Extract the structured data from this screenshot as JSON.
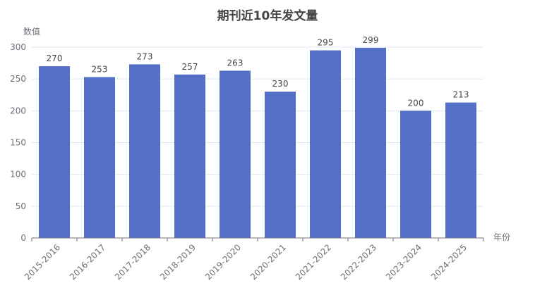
{
  "chart_data": {
    "type": "bar",
    "title": "期刊近10年发文量",
    "ylabel": "数值",
    "xlabel": "年份",
    "ylim": [
      0,
      300
    ],
    "yticks": [
      0,
      50,
      100,
      150,
      200,
      250,
      300
    ],
    "categories": [
      "2015-2016",
      "2016-2017",
      "2017-2018",
      "2018-2019",
      "2019-2020",
      "2020-2021",
      "2021-2022",
      "2022-2023",
      "2023-2024",
      "2024-2025"
    ],
    "values": [
      270,
      253,
      273,
      257,
      263,
      230,
      295,
      299,
      200,
      213
    ],
    "bar_color": "#5470c6",
    "grid": true
  }
}
